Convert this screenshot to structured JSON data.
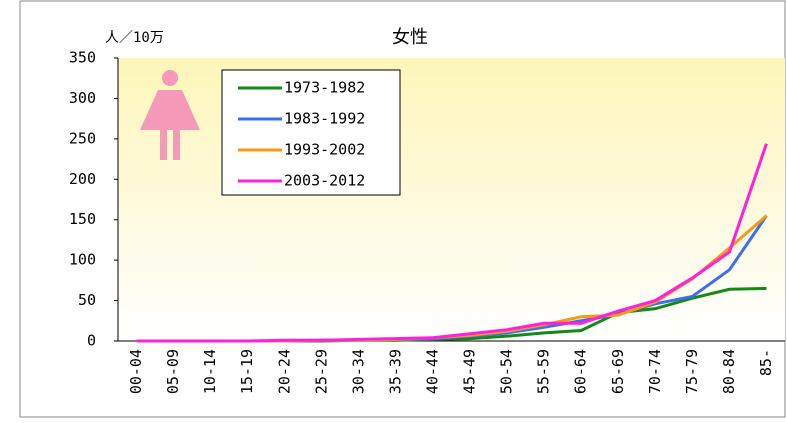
{
  "chart_data": {
    "type": "line",
    "title": "女性",
    "y_label": "人／10万",
    "categories": [
      "00-04",
      "05-09",
      "10-14",
      "15-19",
      "20-24",
      "25-29",
      "30-34",
      "35-39",
      "40-44",
      "45-49",
      "50-54",
      "55-59",
      "60-64",
      "65-69",
      "70-74",
      "75-79",
      "80-84",
      "85-"
    ],
    "series": [
      {
        "name": "1973-1982",
        "color": "#138a13",
        "values": [
          0,
          0,
          0,
          0,
          0,
          0,
          1,
          1,
          2,
          3,
          6,
          10,
          13,
          35,
          40,
          53,
          64,
          65
        ]
      },
      {
        "name": "1983-1992",
        "color": "#3a6ff0",
        "values": [
          0,
          0,
          0,
          0,
          0,
          1,
          1,
          2,
          3,
          6,
          10,
          17,
          25,
          33,
          46,
          55,
          88,
          155
        ]
      },
      {
        "name": "1993-2002",
        "color": "#f59b10",
        "values": [
          0,
          0,
          0,
          0,
          0,
          1,
          1,
          2,
          4,
          7,
          12,
          20,
          30,
          32,
          48,
          77,
          115,
          155
        ]
      },
      {
        "name": "2003-2012",
        "color": "#ff1fe0",
        "values": [
          0,
          0,
          0,
          0,
          1,
          1,
          2,
          3,
          4,
          9,
          14,
          22,
          22,
          37,
          50,
          78,
          110,
          244
        ]
      }
    ],
    "ylim": [
      0,
      350
    ],
    "yticks": [
      0,
      50,
      100,
      150,
      200,
      250,
      300,
      350
    ],
    "grid": false
  }
}
